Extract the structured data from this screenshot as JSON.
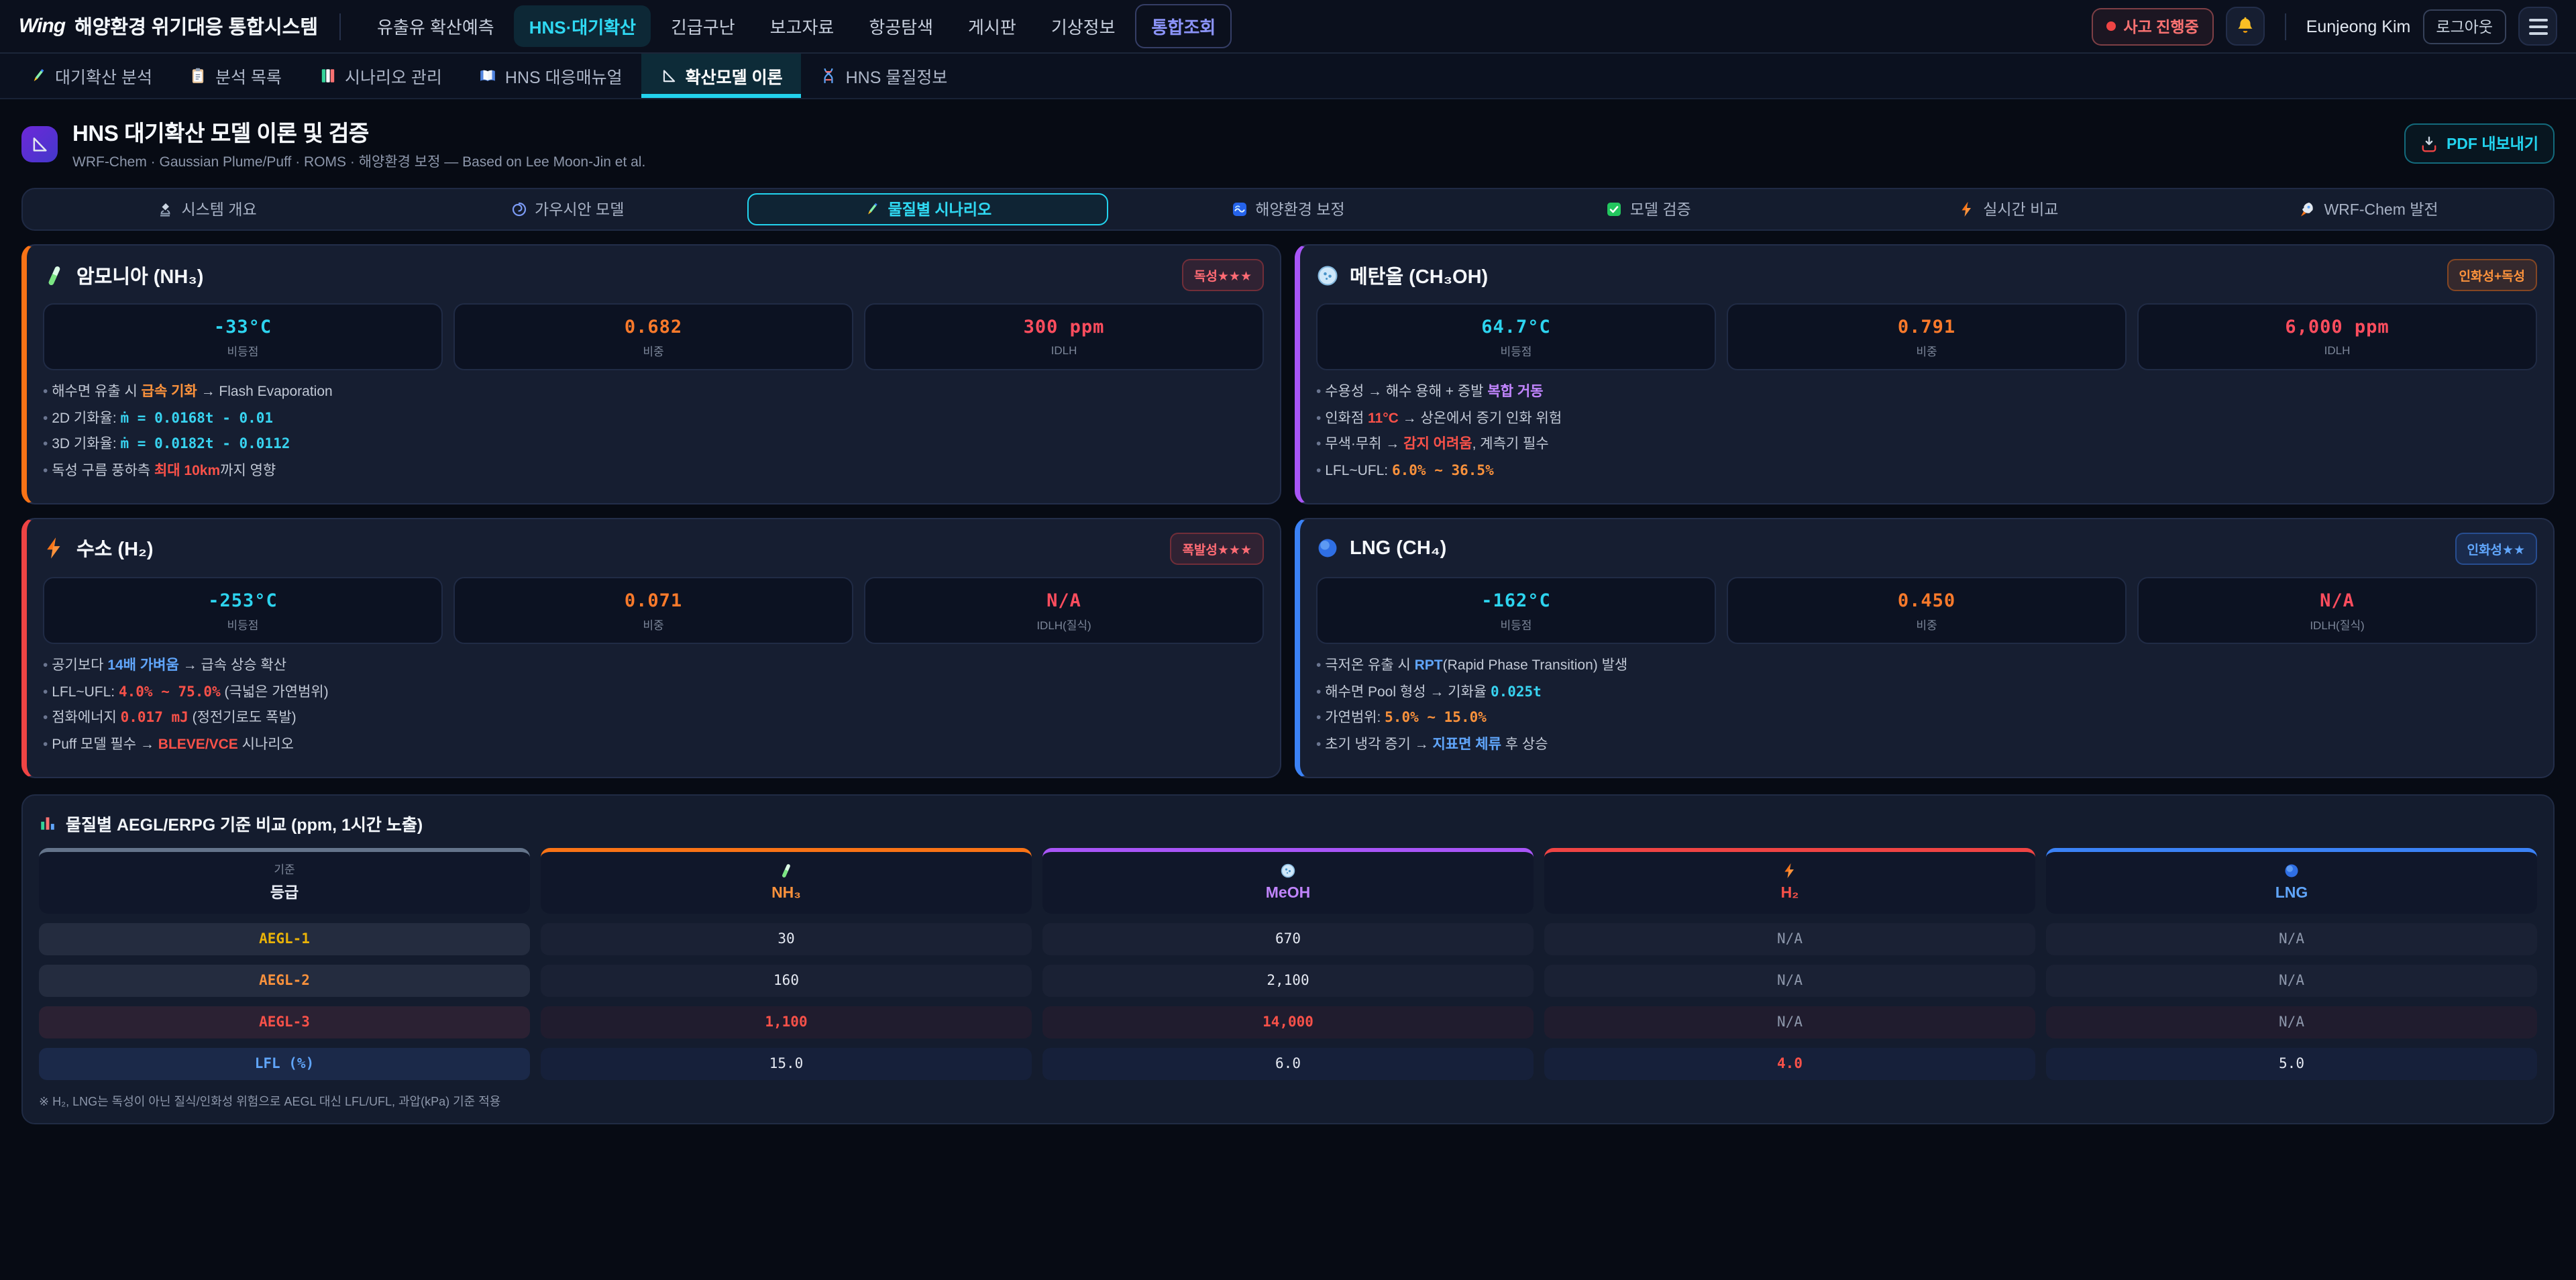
{
  "colors": {
    "accent_cyan": "#22d3ee",
    "accent_orange": "#f97316",
    "accent_purple": "#a855f7",
    "accent_red": "#ef4444",
    "accent_blue": "#3b82f6",
    "gold": "#eab308"
  },
  "header": {
    "logo": "Wing",
    "system_title": "해양환경 위기대응 통합시스템",
    "nav": [
      {
        "label": "유출유 확산예측",
        "state": ""
      },
      {
        "label": "HNS·대기확산",
        "state": "active"
      },
      {
        "label": "긴급구난",
        "state": ""
      },
      {
        "label": "보고자료",
        "state": ""
      },
      {
        "label": "항공탐색",
        "state": ""
      },
      {
        "label": "게시판",
        "state": ""
      },
      {
        "label": "기상정보",
        "state": ""
      },
      {
        "label": "통합조회",
        "state": "highlight"
      }
    ],
    "incident_badge": "사고 진행중",
    "bell_icon": "bell-icon",
    "user_name": "Eunjeong Kim",
    "logout_label": "로그아웃",
    "menu_icon": "hamburger-icon"
  },
  "subnav": [
    {
      "icon": "pencil",
      "label": "대기확산 분석",
      "active": false
    },
    {
      "icon": "clipboard",
      "label": "분석 목록",
      "active": false
    },
    {
      "icon": "bookmarks",
      "label": "시나리오 관리",
      "active": false
    },
    {
      "icon": "open-book",
      "label": "HNS 대응매뉴얼",
      "active": false
    },
    {
      "icon": "triangle-ruler",
      "label": "확산모델 이론",
      "active": true
    },
    {
      "icon": "dna",
      "label": "HNS 물질정보",
      "active": false
    }
  ],
  "page": {
    "icon": "triangle-ruler",
    "title": "HNS 대기확산 모델 이론 및 검증",
    "subtitle": "WRF-Chem · Gaussian Plume/Puff · ROMS · 해양환경 보정 — Based on Lee Moon-Jin et al.",
    "export_label": "PDF 내보내기"
  },
  "section_tabs": [
    {
      "icon": "microscope",
      "label": "시스템 개요",
      "active": false
    },
    {
      "icon": "spiral",
      "label": "가우시안 모델",
      "active": false
    },
    {
      "icon": "pencil",
      "label": "물질별 시나리오",
      "active": true
    },
    {
      "icon": "wave",
      "label": "해양환경 보정",
      "active": false
    },
    {
      "icon": "check",
      "label": "모델 검증",
      "active": false
    },
    {
      "icon": "lightning",
      "label": "실시간 비교",
      "active": false
    },
    {
      "icon": "rocket",
      "label": "WRF-Chem 발전",
      "active": false
    }
  ],
  "chemicals": [
    {
      "icon": "test-tube",
      "name": "암모니아 (NH₃)",
      "accent": "#f97316",
      "badge": {
        "label": "독성★★★",
        "style": "red"
      },
      "stats": [
        {
          "value": "-33°C",
          "label": "비등점",
          "color": "v_cyan"
        },
        {
          "value": "0.682",
          "label": "비중",
          "color": "v_orange"
        },
        {
          "value": "300 ppm",
          "label": "IDLH",
          "color": "v_red"
        }
      ],
      "bullets": [
        [
          {
            "t": "해수면 유출 시 "
          },
          {
            "t": "급속 기화",
            "s": "b_orange"
          },
          {
            "t": " → Flash Evaporation"
          }
        ],
        [
          {
            "t": "2D 기화율: "
          },
          {
            "t": "ṁ = 0.0168t - 0.01",
            "s": "m_cyan"
          }
        ],
        [
          {
            "t": "3D 기화율: "
          },
          {
            "t": "ṁ = 0.0182t - 0.0112",
            "s": "m_cyan"
          }
        ],
        [
          {
            "t": "독성 구름 풍하측 "
          },
          {
            "t": "최대 10km",
            "s": "b_red"
          },
          {
            "t": "까지 영향"
          }
        ]
      ]
    },
    {
      "icon": "petri-dish",
      "name": "메탄올 (CH₃OH)",
      "accent": "#a855f7",
      "badge": {
        "label": "인화성+독성",
        "style": "orange"
      },
      "stats": [
        {
          "value": "64.7°C",
          "label": "비등점",
          "color": "v_cyan"
        },
        {
          "value": "0.791",
          "label": "비중",
          "color": "v_orange"
        },
        {
          "value": "6,000 ppm",
          "label": "IDLH",
          "color": "v_red"
        }
      ],
      "bullets": [
        [
          {
            "t": "수용성 → 해수 용해 + 증발 "
          },
          {
            "t": "복합 거동",
            "s": "b_purple"
          }
        ],
        [
          {
            "t": "인화점 "
          },
          {
            "t": "11°C",
            "s": "b_red"
          },
          {
            "t": " → 상온에서 증기 인화 위험"
          }
        ],
        [
          {
            "t": "무색·무취 → "
          },
          {
            "t": "감지 어려움",
            "s": "b_red"
          },
          {
            "t": ", 계측기 필수"
          }
        ],
        [
          {
            "t": "LFL~UFL: "
          },
          {
            "t": "6.0% ~ 36.5%",
            "s": "m_orange"
          }
        ]
      ]
    },
    {
      "icon": "lightning",
      "name": "수소 (H₂)",
      "accent": "#ef4444",
      "badge": {
        "label": "폭발성★★★",
        "style": "red"
      },
      "stats": [
        {
          "value": "-253°C",
          "label": "비등점",
          "color": "v_cyan"
        },
        {
          "value": "0.071",
          "label": "비중",
          "color": "v_orange"
        },
        {
          "value": "N/A",
          "label": "IDLH(질식)",
          "color": "v_red"
        }
      ],
      "bullets": [
        [
          {
            "t": "공기보다 "
          },
          {
            "t": "14배 가벼움",
            "s": "b_blue"
          },
          {
            "t": " → 급속 상승 확산"
          }
        ],
        [
          {
            "t": "LFL~UFL: "
          },
          {
            "t": "4.0% ~ 75.0%",
            "s": "m_red"
          },
          {
            "t": " (극넓은 가연범위)"
          }
        ],
        [
          {
            "t": "점화에너지 "
          },
          {
            "t": "0.017 mJ",
            "s": "m_red"
          },
          {
            "t": " (정전기로도 폭발)"
          }
        ],
        [
          {
            "t": "Puff 모델 필수 → "
          },
          {
            "t": "BLEVE/VCE",
            "s": "b_red"
          },
          {
            "t": " 시나리오"
          }
        ]
      ]
    },
    {
      "icon": "blue-sphere",
      "name": "LNG (CH₄)",
      "accent": "#3b82f6",
      "badge": {
        "label": "인화성★★",
        "style": "blue"
      },
      "stats": [
        {
          "value": "-162°C",
          "label": "비등점",
          "color": "v_cyan"
        },
        {
          "value": "0.450",
          "label": "비중",
          "color": "v_orange"
        },
        {
          "value": "N/A",
          "label": "IDLH(질식)",
          "color": "v_red"
        }
      ],
      "bullets": [
        [
          {
            "t": "극저온 유출 시 "
          },
          {
            "t": "RPT",
            "s": "b_blue"
          },
          {
            "t": "(Rapid Phase Transition) 발생"
          }
        ],
        [
          {
            "t": "해수면 Pool 형성 → 기화율 "
          },
          {
            "t": "0.025t",
            "s": "m_cyan"
          }
        ],
        [
          {
            "t": "가연범위: "
          },
          {
            "t": "5.0% ~ 15.0%",
            "s": "m_orange"
          }
        ],
        [
          {
            "t": "초기 냉각 증기 → "
          },
          {
            "t": "지표면 체류",
            "s": "b_blue"
          },
          {
            "t": " 후 상승"
          }
        ]
      ]
    }
  ],
  "table": {
    "icon": "bar-chart",
    "title": "물질별 AEGL/ERPG 기준 비교 (ppm, 1시간 노출)",
    "columns": [
      {
        "sub": "기준",
        "label": "등급",
        "color": "#e5e9f2",
        "border": "#64748b",
        "icon": null
      },
      {
        "label": "NH₃",
        "color": "#fb923c",
        "border": "#f97316",
        "icon": "test-tube"
      },
      {
        "label": "MeOH",
        "color": "#c084fc",
        "border": "#a855f7",
        "icon": "petri-dish"
      },
      {
        "label": "H₂",
        "color": "#f85149",
        "border": "#ef4444",
        "icon": "lightning"
      },
      {
        "label": "LNG",
        "color": "#60a5fa",
        "border": "#3b82f6",
        "icon": "blue-sphere"
      }
    ],
    "rows": [
      {
        "label": "AEGL-1",
        "label_color": "#eab308",
        "tint": "",
        "cells": [
          {
            "v": "30"
          },
          {
            "v": "670"
          },
          {
            "v": "N/A",
            "na": true
          },
          {
            "v": "N/A",
            "na": true
          }
        ]
      },
      {
        "label": "AEGL-2",
        "label_color": "#fb923c",
        "tint": "",
        "cells": [
          {
            "v": "160"
          },
          {
            "v": "2,100"
          },
          {
            "v": "N/A",
            "na": true
          },
          {
            "v": "N/A",
            "na": true
          }
        ]
      },
      {
        "label": "AEGL-3",
        "label_color": "#f85149",
        "tint": "tint-red",
        "cells": [
          {
            "v": "1,100",
            "c": "red"
          },
          {
            "v": "14,000",
            "c": "red"
          },
          {
            "v": "N/A",
            "na": true
          },
          {
            "v": "N/A",
            "na": true
          }
        ]
      },
      {
        "label": "LFL (%)",
        "label_color": "#60a5fa",
        "tint": "tint-blue",
        "cells": [
          {
            "v": "15.0"
          },
          {
            "v": "6.0"
          },
          {
            "v": "4.0",
            "c": "red"
          },
          {
            "v": "5.0"
          }
        ]
      }
    ],
    "footnote": "※ H₂, LNG는 독성이 아닌 질식/인화성 위험으로 AEGL 대신 LFL/UFL, 과압(kPa) 기준 적용"
  }
}
